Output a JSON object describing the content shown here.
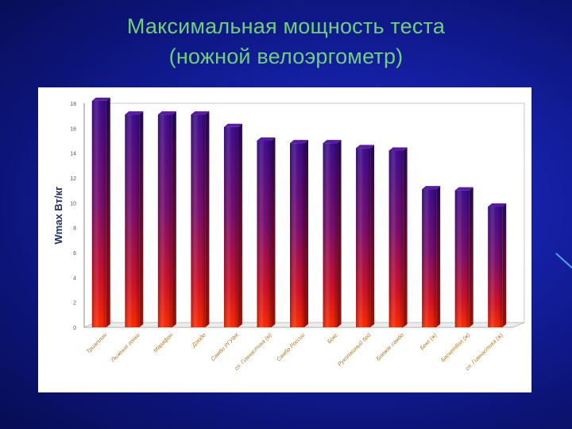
{
  "slide": {
    "title_line1": "Максимальная мощность теста",
    "title_line2": "(ножной велоэргометр)"
  },
  "colors": {
    "background": "#1520a6",
    "title": "#6fd07a",
    "bar_top": "#3d0c8e",
    "bar_bottom": "#ff1a00"
  },
  "chart_data": {
    "type": "bar",
    "title": "",
    "xlabel": "",
    "ylabel": "Wmax Вт/кг",
    "ylim": [
      0,
      18
    ],
    "yticks": [
      0,
      2,
      4,
      6,
      8,
      10,
      12,
      14,
      16,
      18
    ],
    "grid": false,
    "legend": "none",
    "categories": [
      "Триатлон",
      "Лыжные гонки",
      "Марафон",
      "Дзюдо",
      "Самбо РГУФК",
      "сп. Гимнастика (м)",
      "Самбо России",
      "Бокс",
      "Рукопашный бой",
      "Боевое самбо",
      "Бокс (ж)",
      "Баскетбол (ж)",
      "сп. Гимнастика (ж)"
    ],
    "values": [
      18.2,
      17.1,
      17.1,
      17.1,
      16.1,
      15.0,
      14.8,
      14.8,
      14.4,
      14.2,
      11.1,
      11.0,
      9.7
    ]
  }
}
